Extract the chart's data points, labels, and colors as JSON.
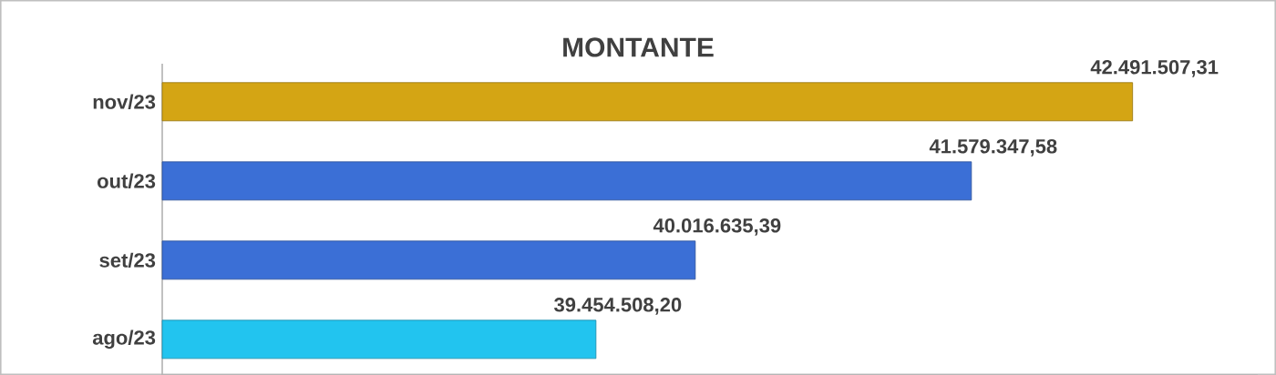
{
  "chart_data": {
    "type": "bar",
    "orientation": "horizontal",
    "title": "MONTANTE",
    "categories": [
      "nov/23",
      "out/23",
      "set/23",
      "ago/23"
    ],
    "values": [
      42491507.31,
      41579347.58,
      40016635.39,
      39454508.2
    ],
    "value_labels": [
      "42.491.507,31",
      "41.579.347,58",
      "40.016.635,39",
      "39.454.508,20"
    ],
    "colors": [
      "#d4a514",
      "#3b6fd6",
      "#3b6fd6",
      "#22c4ef"
    ],
    "xlim": [
      37000000,
      43200000
    ],
    "tick_labels": "y"
  }
}
